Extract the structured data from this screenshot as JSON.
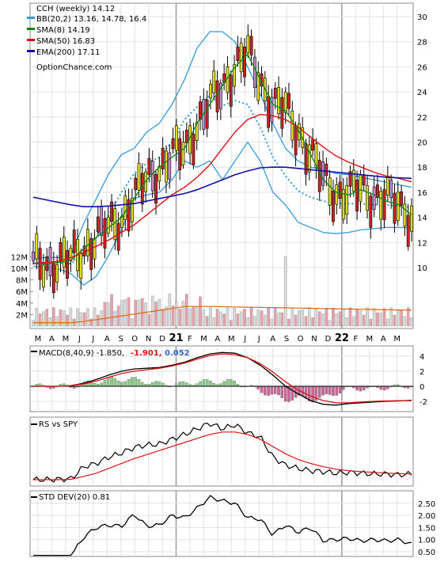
{
  "header": {
    "title": "CCH (weekly) 14.12",
    "watermark": "OptionChance.com"
  },
  "legend": [
    {
      "label": "BB(20,2) 13.16, 14.78, 16.4",
      "color": "#3399dd"
    },
    {
      "label": "SMA(8) 14.19",
      "color": "#118811"
    },
    {
      "label": "SMA(50) 16.83",
      "color": "#dd1111"
    },
    {
      "label": "EMA(200) 17.11",
      "color": "#1111aa"
    }
  ],
  "colors": {
    "up_candle": "#dddd22",
    "up_candle_alt": "#cc88cc",
    "down_candle": "#cc2222",
    "bb_band": "#3399dd",
    "sma8": "#118811",
    "sma50": "#dd1111",
    "ema200": "#1111aa",
    "volume_up": "#e8a0a8",
    "volume_down": "#d8d8d8",
    "volume_avg": "#dd6611",
    "macd_line": "#000000",
    "macd_signal": "#dd1111",
    "hist_pos": "#88cc88",
    "hist_neg": "#cc6699"
  },
  "chart_data": [
    {
      "type": "candlestick",
      "title": "CCH (weekly) 14.12",
      "ylim": [
        9,
        30.8
      ],
      "yticks": [
        10,
        12,
        14,
        16,
        18,
        20,
        22,
        24,
        26,
        28,
        30
      ],
      "month_labels": [
        "M",
        "A",
        "M",
        "J",
        "J",
        "A",
        "S",
        "O",
        "N",
        "D",
        "21",
        "F",
        "M",
        "A",
        "M",
        "J",
        "J",
        "A",
        "S",
        "O",
        "N",
        "D",
        "22",
        "F",
        "M",
        "A",
        "M"
      ],
      "series": [
        {
          "name": "SMA(8)",
          "values": [
            10.3,
            10.3,
            10.4,
            10.6,
            11.5,
            12.4,
            13.2,
            14.0,
            15.5,
            17.0,
            18.0,
            18.8,
            19.5,
            21.5,
            23.0,
            24.5,
            26.0,
            27.0,
            25.0,
            23.0,
            22.5,
            21.0,
            19.0,
            17.0,
            16.0,
            15.8,
            16.2,
            15.8,
            15.3,
            15.0,
            14.2
          ]
        },
        {
          "name": "SMA(50)",
          "values": [
            10.3,
            10.4,
            10.5,
            10.8,
            11.2,
            11.7,
            12.2,
            12.8,
            13.4,
            14.2,
            15.0,
            15.8,
            16.4,
            17.2,
            18.2,
            19.5,
            20.8,
            21.8,
            22.2,
            22.1,
            21.8,
            21.2,
            20.4,
            19.6,
            18.9,
            18.4,
            18.0,
            17.6,
            17.3,
            17.1,
            16.83
          ]
        },
        {
          "name": "EMA(200)",
          "values": [
            15.6,
            15.4,
            15.2,
            15.0,
            14.85,
            14.85,
            14.9,
            15.0,
            15.1,
            15.3,
            15.5,
            15.7,
            15.9,
            16.2,
            16.6,
            17.0,
            17.4,
            17.7,
            17.95,
            18.0,
            18.0,
            17.9,
            17.8,
            17.7,
            17.6,
            17.5,
            17.4,
            17.3,
            17.2,
            17.15,
            17.11
          ]
        },
        {
          "name": "BB upper",
          "values": [
            10.7,
            10.8,
            10.8,
            11.0,
            13.5,
            15.5,
            17.5,
            19.0,
            19.5,
            20.8,
            21.5,
            23.0,
            25.0,
            27.5,
            28.8,
            28.8,
            28.0,
            26.0,
            23.8,
            21.5,
            19.5,
            18.5,
            18.0,
            17.8,
            17.5,
            17.4,
            17.2,
            17.0,
            16.8,
            16.6,
            16.4
          ]
        },
        {
          "name": "BB lower",
          "values": [
            10.1,
            10.0,
            9.9,
            9.5,
            8.6,
            9.3,
            11.0,
            13.0,
            15.5,
            15.8,
            16.0,
            17.0,
            18.5,
            18.0,
            18.5,
            17.0,
            18.5,
            20.0,
            18.5,
            16.0,
            15.0,
            13.6,
            13.2,
            12.8,
            12.7,
            12.8,
            13.0,
            13.1,
            13.2,
            13.2,
            13.16
          ]
        },
        {
          "name": "BB middle",
          "values": [
            10.4,
            10.4,
            10.4,
            10.3,
            11.0,
            12.4,
            14.2,
            16.0,
            17.5,
            18.3,
            18.8,
            20.0,
            21.8,
            22.8,
            23.7,
            22.9,
            23.3,
            23.0,
            21.2,
            18.8,
            17.3,
            16.1,
            15.6,
            15.3,
            15.1,
            15.1,
            15.1,
            15.0,
            15.0,
            14.9,
            14.78
          ]
        }
      ]
    },
    {
      "type": "bar",
      "title": "Volume",
      "yticks": [
        2,
        4,
        6,
        8,
        10,
        12
      ],
      "ytick_labels": [
        "2M",
        "4M",
        "6M",
        "8M",
        "10M",
        "12M"
      ],
      "ylim": [
        0,
        12.5
      ]
    },
    {
      "type": "line",
      "title": "MACD(8,40,9) -1.850, -1.901, 0.052",
      "label_prefix": "MACD(8,40,9) -1.850,",
      "label_value1": "-1.901,",
      "label_value2": "0.052",
      "ylim": [
        -3.2,
        5.2
      ],
      "yticks": [
        4,
        2,
        0,
        -2
      ],
      "series": [
        {
          "name": "MACD",
          "values": [
            0.0,
            0.0,
            0.0,
            0.1,
            0.4,
            0.9,
            1.5,
            2.0,
            2.3,
            2.4,
            2.5,
            2.8,
            3.2,
            3.8,
            4.3,
            4.5,
            4.4,
            3.8,
            2.8,
            1.5,
            0.0,
            -1.0,
            -1.9,
            -2.4,
            -2.5,
            -2.3,
            -2.2,
            -2.1,
            -2.0,
            -1.95,
            -1.85
          ]
        },
        {
          "name": "Signal",
          "values": [
            0.0,
            0.0,
            0.0,
            0.1,
            0.3,
            0.7,
            1.2,
            1.7,
            2.0,
            2.2,
            2.4,
            2.7,
            3.1,
            3.6,
            4.1,
            4.3,
            4.2,
            3.8,
            3.0,
            1.9,
            0.6,
            -0.5,
            -1.3,
            -1.9,
            -2.2,
            -2.2,
            -2.1,
            -2.0,
            -1.95,
            -1.92,
            -1.901
          ]
        }
      ]
    },
    {
      "type": "line",
      "title": "RS vs SPY",
      "series": [
        {
          "name": "RS",
          "values": [
            0.2,
            0.2,
            0.25,
            0.3,
            1.8,
            2.2,
            3.0,
            3.5,
            4.2,
            4.5,
            4.6,
            5.2,
            5.8,
            6.5,
            7.2,
            6.5,
            7.0,
            6.0,
            5.5,
            3.0,
            2.0,
            1.6,
            1.3,
            1.2,
            1.0,
            1.1,
            1.0,
            0.9,
            0.9,
            0.8,
            0.9
          ]
        },
        {
          "name": "RS average",
          "values": [
            0.2,
            0.2,
            0.2,
            0.25,
            0.6,
            1.0,
            1.6,
            2.2,
            2.8,
            3.3,
            3.8,
            4.3,
            4.8,
            5.3,
            5.8,
            6.1,
            6.1,
            5.8,
            5.2,
            4.3,
            3.4,
            2.7,
            2.2,
            1.8,
            1.5,
            1.3,
            1.2,
            1.1,
            1.0,
            0.95,
            0.9
          ]
        }
      ]
    },
    {
      "type": "line",
      "title": "STD DEV(20) 0.81",
      "ylim": [
        0.3,
        2.85
      ],
      "yticks": [
        2.5,
        2.0,
        1.5,
        1.0,
        0.5
      ],
      "ytick_labels": [
        "2.50",
        "2.00",
        "1.50",
        "1.00",
        "0.50"
      ],
      "series": [
        {
          "name": "STD DEV(20)",
          "values": [
            0.35,
            0.35,
            0.35,
            0.35,
            1.1,
            1.5,
            1.6,
            1.55,
            2.05,
            1.55,
            1.6,
            2.0,
            1.9,
            2.3,
            2.75,
            2.6,
            2.5,
            1.9,
            1.85,
            1.2,
            1.6,
            1.3,
            1.5,
            0.95,
            1.0,
            1.05,
            0.95,
            1.0,
            0.95,
            1.0,
            0.81
          ]
        }
      ]
    }
  ]
}
